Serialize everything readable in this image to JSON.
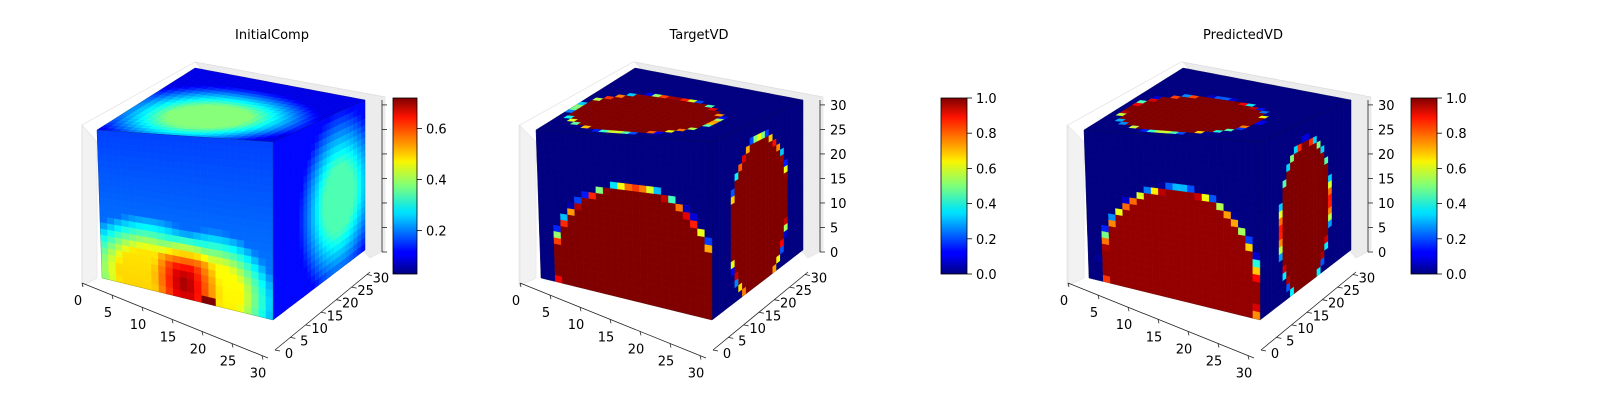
{
  "chart_data": [
    {
      "type": "heatmap",
      "title": "InitialComp",
      "xlabel": "",
      "ylabel": "",
      "zlabel": "",
      "x_ticks": [
        "0",
        "5",
        "10",
        "15",
        "20",
        "25",
        "30"
      ],
      "y_ticks": [
        "0",
        "5",
        "10",
        "15",
        "20",
        "25",
        "30"
      ],
      "z_ticks": [],
      "colorbar": {
        "min": 0.03,
        "max": 0.72,
        "ticks": [
          "0.2",
          "0.4",
          "0.6"
        ],
        "tick_values": [
          0.2,
          0.4,
          0.6
        ]
      },
      "colormap": "jet"
    },
    {
      "type": "heatmap",
      "title": "TargetVD",
      "xlabel": "",
      "ylabel": "",
      "zlabel": "",
      "x_ticks": [
        "0",
        "5",
        "10",
        "15",
        "20",
        "25",
        "30"
      ],
      "y_ticks": [
        "0",
        "5",
        "10",
        "15",
        "20",
        "25",
        "30"
      ],
      "z_ticks": [
        "0",
        "5",
        "10",
        "15",
        "20",
        "25",
        "30"
      ],
      "colorbar": {
        "min": 0.0,
        "max": 1.0,
        "ticks": [
          "0.0",
          "0.2",
          "0.4",
          "0.6",
          "0.8",
          "1.0"
        ],
        "tick_values": [
          0,
          0.2,
          0.4,
          0.6,
          0.8,
          1.0
        ]
      },
      "colormap": "jet"
    },
    {
      "type": "heatmap",
      "title": "PredictedVD",
      "xlabel": "",
      "ylabel": "",
      "zlabel": "",
      "x_ticks": [
        "0",
        "5",
        "10",
        "15",
        "20",
        "25",
        "30"
      ],
      "y_ticks": [
        "0",
        "5",
        "10",
        "15",
        "20",
        "25",
        "30"
      ],
      "z_ticks": [
        "0",
        "5",
        "10",
        "15",
        "20",
        "25",
        "30"
      ],
      "colorbar": {
        "min": 0.0,
        "max": 1.0,
        "ticks": [
          "0.0",
          "0.2",
          "0.4",
          "0.6",
          "0.8",
          "1.0"
        ],
        "tick_values": [
          0,
          0.2,
          0.4,
          0.6,
          0.8,
          1.0
        ]
      },
      "colormap": "jet"
    }
  ]
}
